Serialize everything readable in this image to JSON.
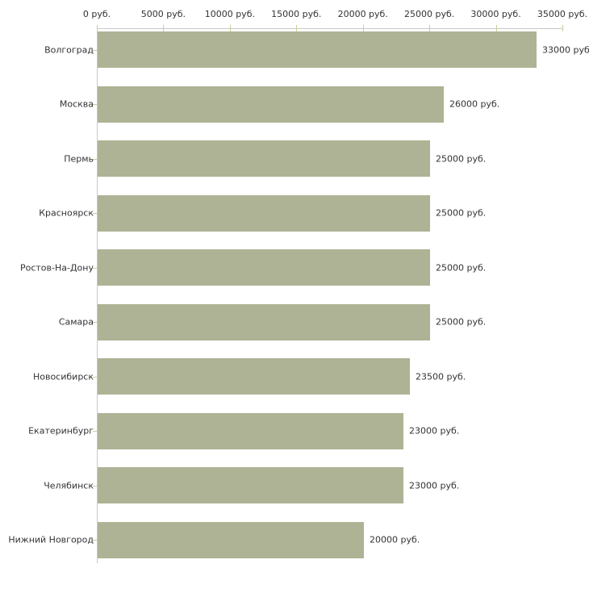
{
  "chart_data": {
    "type": "bar",
    "orientation": "horizontal",
    "title": "",
    "xlabel": "",
    "ylabel": "",
    "grid": false,
    "legend": false,
    "categories": [
      "Волгоград",
      "Москва",
      "Пермь",
      "Красноярск",
      "Ростов-На-Дону",
      "Самара",
      "Новосибирск",
      "Екатеринбург",
      "Челябинск",
      "Нижний Новгород"
    ],
    "values": [
      33000,
      26000,
      25000,
      25000,
      25000,
      25000,
      23500,
      23000,
      23000,
      20000
    ],
    "value_labels": [
      "33000 руб",
      "26000 руб.",
      "25000 руб.",
      "25000 руб.",
      "25000 руб.",
      "25000 руб.",
      "23500 руб.",
      "23000 руб.",
      "23000 руб.",
      "20000 руб."
    ],
    "x_axis": {
      "position": "top",
      "min": 0,
      "max": 35000,
      "tick_values": [
        0,
        5000,
        10000,
        15000,
        20000,
        25000,
        30000,
        35000
      ],
      "tick_labels": [
        "0 руб.",
        "5000 руб.",
        "10000 руб.",
        "15000 руб.",
        "20000 руб.",
        "25000 руб.",
        "30000 руб.",
        "35000 руб."
      ]
    },
    "colors": {
      "bar": "#ADB394",
      "axis_line": "#C9C9C9",
      "tick": "#CCCC99",
      "text": "#333333",
      "background": "#FFFFFF"
    }
  }
}
